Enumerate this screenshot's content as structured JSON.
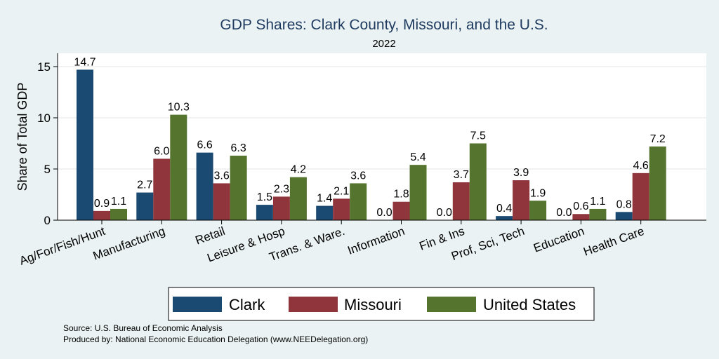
{
  "chart_data": {
    "type": "bar",
    "title": "GDP Shares: Clark County, Missouri, and the U.S.",
    "subtitle": "2022",
    "xlabel": "",
    "ylabel": "Share of Total GDP",
    "ylim": [
      0,
      16
    ],
    "yticks": [
      0,
      5,
      10,
      15
    ],
    "grid": true,
    "legend_position": "bottom",
    "categories": [
      "Ag/For/Fish/Hunt",
      "Manufacturing",
      "Retail",
      "Leisure & Hosp",
      "Trans. & Ware.",
      "Information",
      "Fin & Ins",
      "Prof, Sci, Tech",
      "Education",
      "Health Care"
    ],
    "series": [
      {
        "name": "Clark",
        "color": "#1a4a72",
        "values": [
          14.7,
          2.7,
          6.6,
          1.5,
          1.4,
          0.0,
          0.0,
          0.4,
          0.0,
          0.8
        ]
      },
      {
        "name": "Missouri",
        "color": "#90353b",
        "values": [
          0.9,
          6.0,
          3.6,
          2.3,
          2.1,
          1.8,
          3.7,
          3.9,
          0.6,
          4.6
        ]
      },
      {
        "name": "United States",
        "color": "#55752f",
        "values": [
          1.1,
          10.3,
          6.3,
          4.2,
          3.6,
          5.4,
          7.5,
          1.9,
          1.1,
          7.2
        ]
      }
    ],
    "source": "Source: U.S. Bureau of Economic Analysis",
    "credit": "Produced by: National Economic Education Delegation (www.NEEDelegation.org)"
  }
}
